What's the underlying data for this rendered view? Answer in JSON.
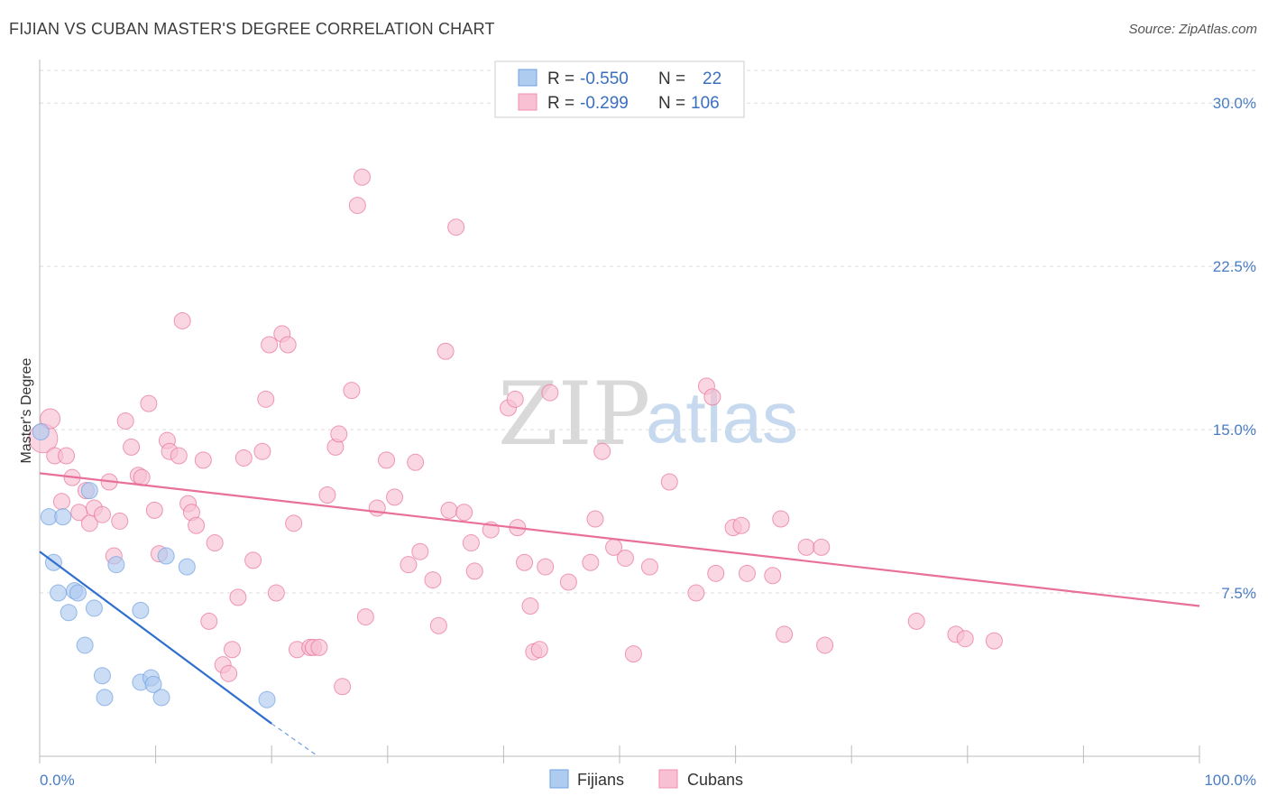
{
  "header": {
    "title": "FIJIAN VS CUBAN MASTER'S DEGREE CORRELATION CHART",
    "source": "Source: ZipAtlas.com"
  },
  "legend": {
    "rows": [
      {
        "r_label": "R =",
        "r_value": "-0.550",
        "n_label": "N =",
        "n_value": "22",
        "color": "#6fa0e0"
      },
      {
        "r_label": "R =",
        "r_value": "-0.299",
        "n_label": "N =",
        "n_value": "106",
        "color": "#f08fb0"
      }
    ]
  },
  "bottom_legend": [
    {
      "label": "Fijians",
      "color": "#aecbf0"
    },
    {
      "label": "Cubans",
      "color": "#f8c0d2"
    }
  ],
  "watermark": {
    "part1": "ZIP",
    "part2": "atlas"
  },
  "chart_data": {
    "type": "scatter",
    "title": "FIJIAN VS CUBAN MASTER'S DEGREE CORRELATION CHART",
    "xlabel": "",
    "ylabel": "Master's Degree",
    "xlim": [
      0,
      100
    ],
    "ylim": [
      0,
      31.5
    ],
    "x_tick_labels": [
      {
        "value": 0,
        "label": "0.0%"
      },
      {
        "value": 100,
        "label": "100.0%"
      }
    ],
    "y_ticks": [
      {
        "value": 7.5,
        "label": "7.5%"
      },
      {
        "value": 15.0,
        "label": "15.0%"
      },
      {
        "value": 22.5,
        "label": "22.5%"
      },
      {
        "value": 30.0,
        "label": "30.0%"
      }
    ],
    "series": [
      {
        "name": "Fijians",
        "color": "#6fa0e0",
        "fill": "#aecbf0",
        "r": -0.55,
        "n": 22,
        "trend": {
          "x0": 0,
          "y0": 9.4,
          "x1": 20,
          "y1": 1.5,
          "dash_to_x": 24,
          "dash_to_y": 0
        },
        "points": [
          [
            0.1,
            14.9
          ],
          [
            0.8,
            11.0
          ],
          [
            2.0,
            11.0
          ],
          [
            1.2,
            8.9
          ],
          [
            4.3,
            12.2
          ],
          [
            1.6,
            7.5
          ],
          [
            3.0,
            7.6
          ],
          [
            3.3,
            7.5
          ],
          [
            2.5,
            6.6
          ],
          [
            4.7,
            6.8
          ],
          [
            6.6,
            8.8
          ],
          [
            10.9,
            9.2
          ],
          [
            12.7,
            8.7
          ],
          [
            8.7,
            6.7
          ],
          [
            3.9,
            5.1
          ],
          [
            5.4,
            3.7
          ],
          [
            8.7,
            3.4
          ],
          [
            9.6,
            3.6
          ],
          [
            9.8,
            3.3
          ],
          [
            5.6,
            2.7
          ],
          [
            10.5,
            2.7
          ],
          [
            19.6,
            2.6
          ]
        ]
      },
      {
        "name": "Cubans",
        "color": "#e8709a",
        "fill": "#f8c0d2",
        "r": -0.299,
        "n": 106,
        "trend": {
          "x0": 0,
          "y0": 13.0,
          "x1": 100,
          "y1": 6.9
        },
        "points": [
          [
            0.3,
            14.6
          ],
          [
            0.9,
            15.5
          ],
          [
            1.3,
            13.8
          ],
          [
            2.3,
            13.8
          ],
          [
            1.9,
            11.7
          ],
          [
            2.8,
            12.8
          ],
          [
            3.4,
            11.2
          ],
          [
            4.0,
            12.2
          ],
          [
            4.3,
            10.7
          ],
          [
            4.7,
            11.4
          ],
          [
            5.4,
            11.1
          ],
          [
            6.0,
            12.6
          ],
          [
            6.4,
            9.2
          ],
          [
            6.9,
            10.8
          ],
          [
            7.4,
            15.4
          ],
          [
            7.9,
            14.2
          ],
          [
            8.5,
            12.9
          ],
          [
            8.8,
            12.8
          ],
          [
            9.4,
            16.2
          ],
          [
            9.9,
            11.3
          ],
          [
            10.3,
            9.3
          ],
          [
            11.0,
            14.5
          ],
          [
            11.2,
            14.0
          ],
          [
            12.0,
            13.8
          ],
          [
            12.3,
            20.0
          ],
          [
            12.8,
            11.6
          ],
          [
            13.1,
            11.2
          ],
          [
            13.5,
            10.6
          ],
          [
            14.1,
            13.6
          ],
          [
            14.6,
            6.2
          ],
          [
            15.1,
            9.8
          ],
          [
            15.8,
            4.2
          ],
          [
            16.3,
            3.8
          ],
          [
            16.6,
            4.9
          ],
          [
            17.1,
            7.3
          ],
          [
            17.6,
            13.7
          ],
          [
            18.4,
            9.0
          ],
          [
            19.2,
            14.0
          ],
          [
            19.5,
            16.4
          ],
          [
            19.8,
            18.9
          ],
          [
            20.4,
            7.5
          ],
          [
            20.9,
            19.4
          ],
          [
            21.4,
            18.9
          ],
          [
            21.9,
            10.7
          ],
          [
            22.2,
            4.9
          ],
          [
            23.3,
            5.0
          ],
          [
            23.6,
            5.0
          ],
          [
            24.1,
            5.0
          ],
          [
            24.8,
            12.0
          ],
          [
            25.5,
            14.2
          ],
          [
            25.8,
            14.8
          ],
          [
            26.1,
            3.2
          ],
          [
            26.9,
            16.8
          ],
          [
            27.4,
            25.3
          ],
          [
            27.8,
            26.6
          ],
          [
            28.1,
            6.4
          ],
          [
            29.1,
            11.4
          ],
          [
            29.9,
            13.6
          ],
          [
            30.6,
            11.9
          ],
          [
            31.8,
            8.8
          ],
          [
            32.4,
            13.5
          ],
          [
            32.8,
            9.4
          ],
          [
            33.9,
            8.1
          ],
          [
            34.4,
            6.0
          ],
          [
            35.0,
            18.6
          ],
          [
            35.3,
            11.3
          ],
          [
            35.9,
            24.3
          ],
          [
            36.6,
            11.2
          ],
          [
            37.2,
            9.8
          ],
          [
            37.5,
            8.5
          ],
          [
            38.9,
            10.4
          ],
          [
            40.4,
            16.0
          ],
          [
            41.0,
            16.4
          ],
          [
            41.2,
            10.5
          ],
          [
            41.8,
            8.9
          ],
          [
            42.3,
            6.9
          ],
          [
            42.6,
            4.8
          ],
          [
            43.1,
            4.9
          ],
          [
            43.6,
            8.7
          ],
          [
            44.0,
            16.7
          ],
          [
            45.6,
            8.0
          ],
          [
            47.5,
            8.9
          ],
          [
            47.9,
            10.9
          ],
          [
            48.5,
            14.0
          ],
          [
            49.5,
            9.6
          ],
          [
            50.5,
            9.1
          ],
          [
            51.2,
            4.7
          ],
          [
            52.6,
            8.7
          ],
          [
            54.3,
            12.6
          ],
          [
            56.6,
            7.5
          ],
          [
            57.5,
            17.0
          ],
          [
            58.0,
            16.5
          ],
          [
            58.3,
            8.4
          ],
          [
            59.8,
            10.5
          ],
          [
            60.5,
            10.6
          ],
          [
            61.0,
            8.4
          ],
          [
            63.2,
            8.3
          ],
          [
            63.9,
            10.9
          ],
          [
            64.2,
            5.6
          ],
          [
            66.1,
            9.6
          ],
          [
            67.4,
            9.6
          ],
          [
            67.7,
            5.1
          ],
          [
            75.6,
            6.2
          ],
          [
            79.0,
            5.6
          ],
          [
            79.8,
            5.4
          ],
          [
            82.3,
            5.3
          ]
        ]
      }
    ],
    "grid": true,
    "legend_position": "top-center"
  }
}
